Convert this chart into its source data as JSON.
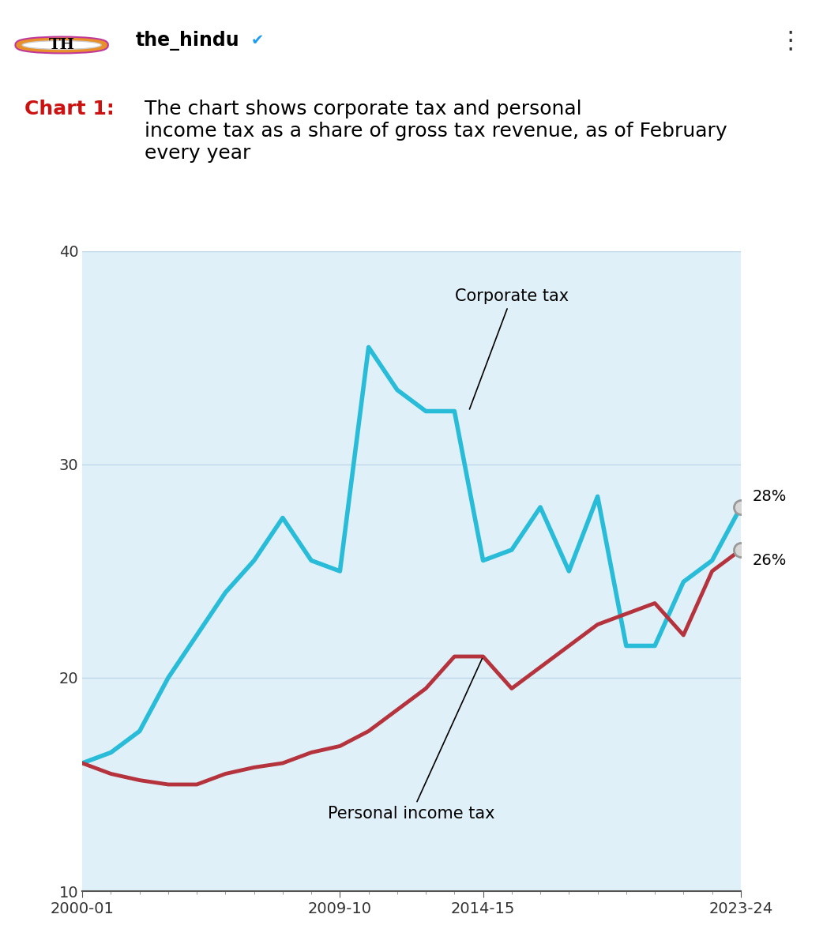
{
  "title_bold": "Chart 1:",
  "title_normal": " The chart shows corporate tax and personal\nincome tax as a share of gross tax revenue, as of February\nevery year",
  "header_user": "the_hindu",
  "background_color": "#ffffff",
  "chart_bg_color": "#dff0f8",
  "years": [
    2000,
    2001,
    2002,
    2003,
    2004,
    2005,
    2006,
    2007,
    2008,
    2009,
    2010,
    2011,
    2012,
    2013,
    2014,
    2015,
    2016,
    2017,
    2018,
    2019,
    2020,
    2021,
    2022,
    2023
  ],
  "year_labels": [
    "2000-01",
    "2009-10",
    "2014-15",
    "2023-24"
  ],
  "corporate_tax": [
    16.0,
    16.5,
    17.5,
    20.0,
    22.0,
    24.0,
    25.5,
    27.5,
    25.5,
    25.0,
    35.5,
    33.5,
    32.5,
    32.5,
    25.5,
    26.0,
    28.0,
    25.0,
    28.5,
    21.5,
    21.5,
    24.5,
    25.5,
    28.0
  ],
  "personal_income_tax": [
    16.0,
    15.5,
    15.2,
    15.0,
    15.0,
    15.5,
    15.8,
    16.0,
    16.5,
    16.8,
    17.5,
    18.5,
    19.5,
    21.0,
    21.0,
    19.5,
    20.5,
    21.5,
    22.5,
    23.0,
    23.5,
    22.0,
    25.0,
    26.0
  ],
  "corporate_color": "#29bcd8",
  "personal_color": "#b5333d",
  "ylim": [
    10,
    40
  ],
  "yticks": [
    10,
    20,
    30,
    40
  ],
  "end_label_corporate": "28%",
  "end_label_personal": "26%",
  "grid_color": "#c0d8e8",
  "title_fontsize": 18,
  "tick_fontsize": 14,
  "annotation_fontsize": 15
}
